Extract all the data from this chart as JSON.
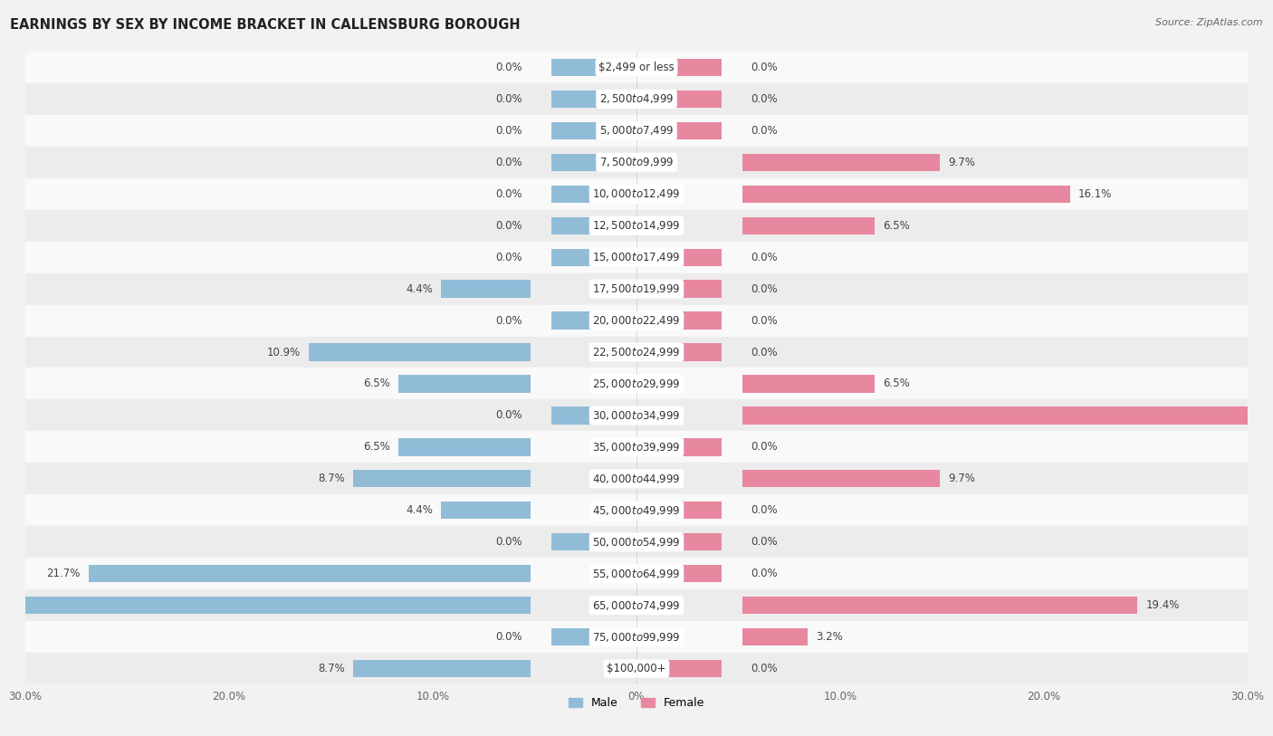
{
  "title": "EARNINGS BY SEX BY INCOME BRACKET IN CALLENSBURG BOROUGH",
  "source": "Source: ZipAtlas.com",
  "categories": [
    "$2,499 or less",
    "$2,500 to $4,999",
    "$5,000 to $7,499",
    "$7,500 to $9,999",
    "$10,000 to $12,499",
    "$12,500 to $14,999",
    "$15,000 to $17,499",
    "$17,500 to $19,999",
    "$20,000 to $22,499",
    "$22,500 to $24,999",
    "$25,000 to $29,999",
    "$30,000 to $34,999",
    "$35,000 to $39,999",
    "$40,000 to $44,999",
    "$45,000 to $49,999",
    "$50,000 to $54,999",
    "$55,000 to $64,999",
    "$65,000 to $74,999",
    "$75,000 to $99,999",
    "$100,000+"
  ],
  "male": [
    0.0,
    0.0,
    0.0,
    0.0,
    0.0,
    0.0,
    0.0,
    4.4,
    0.0,
    10.9,
    6.5,
    0.0,
    6.5,
    8.7,
    4.4,
    0.0,
    21.7,
    28.3,
    0.0,
    8.7
  ],
  "female": [
    0.0,
    0.0,
    0.0,
    9.7,
    16.1,
    6.5,
    0.0,
    0.0,
    0.0,
    0.0,
    6.5,
    29.0,
    0.0,
    9.7,
    0.0,
    0.0,
    0.0,
    19.4,
    3.2,
    0.0
  ],
  "male_color": "#90bcd8",
  "female_color": "#e888a0",
  "background_color": "#f2f2f2",
  "row_bg_even": "#f9f9f9",
  "row_bg_odd": "#ececec",
  "axis_max": 30.0,
  "bar_min_display": 2.0,
  "title_fontsize": 10.5,
  "cat_fontsize": 8.5,
  "val_fontsize": 8.5,
  "tick_fontsize": 8.5,
  "source_fontsize": 8,
  "legend_fontsize": 9,
  "label_inside_threshold": 20.0,
  "label_white_threshold_female": 25.0,
  "label_white_threshold_male": 22.0
}
